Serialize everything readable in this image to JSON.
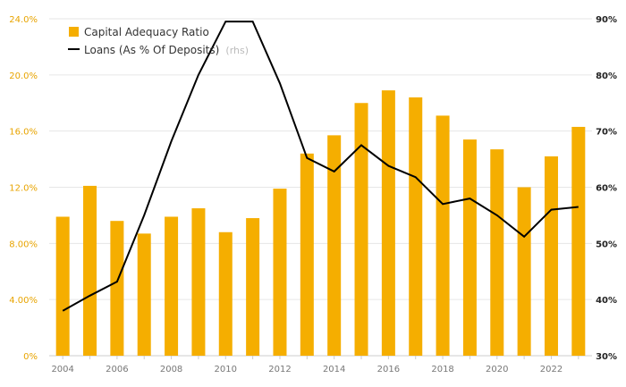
{
  "chart_data": {
    "type": "bar",
    "categories": [
      "2004",
      "2005",
      "2006",
      "2007",
      "2008",
      "2009",
      "2010",
      "2011",
      "2012",
      "2013",
      "2014",
      "2015",
      "2016",
      "2017",
      "2018",
      "2019",
      "2020",
      "2021",
      "2022",
      "2023"
    ],
    "x_tick_labels": [
      "2004",
      "2006",
      "2008",
      "2010",
      "2012",
      "2014",
      "2016",
      "2018",
      "2020",
      "2022"
    ],
    "series": [
      {
        "name": "Capital Adequacy Ratio",
        "type": "bar",
        "axis": "left",
        "color": "#f5ae00",
        "values": [
          9.9,
          12.1,
          9.6,
          8.7,
          9.9,
          10.5,
          8.8,
          9.8,
          11.9,
          14.4,
          15.7,
          18.0,
          18.9,
          18.4,
          17.1,
          15.4,
          14.7,
          12.0,
          14.2,
          16.3
        ]
      },
      {
        "name": "Loans (As % Of Deposits)",
        "type": "line",
        "axis": "right",
        "color": "#000000",
        "values": [
          38.0,
          40.7,
          43.2,
          55.0,
          68.2,
          80.0,
          89.5,
          89.5,
          78.5,
          65.2,
          62.8,
          67.5,
          63.8,
          61.8,
          57.0,
          58.0,
          55.0,
          51.2,
          56.0,
          56.5
        ]
      }
    ],
    "y_left": {
      "min": 0,
      "max": 24,
      "ticks": [
        0,
        4,
        8,
        12,
        16,
        20,
        24
      ],
      "tick_labels": [
        "0%",
        "4.00%",
        "8.00%",
        "12.0%",
        "16.0%",
        "20.0%",
        "24.0%"
      ]
    },
    "y_right": {
      "min": 30,
      "max": 90,
      "ticks": [
        30,
        40,
        50,
        60,
        70,
        80,
        90
      ],
      "tick_labels": [
        "30%",
        "40%",
        "50%",
        "60%",
        "70%",
        "80%",
        "90%"
      ]
    },
    "legend": {
      "position": "top-left",
      "items": [
        {
          "label": "Capital Adequacy Ratio",
          "suffix": ""
        },
        {
          "label": "Loans (As % Of Deposits)",
          "suffix": "(rhs)"
        }
      ]
    },
    "grid": "horizontal"
  }
}
